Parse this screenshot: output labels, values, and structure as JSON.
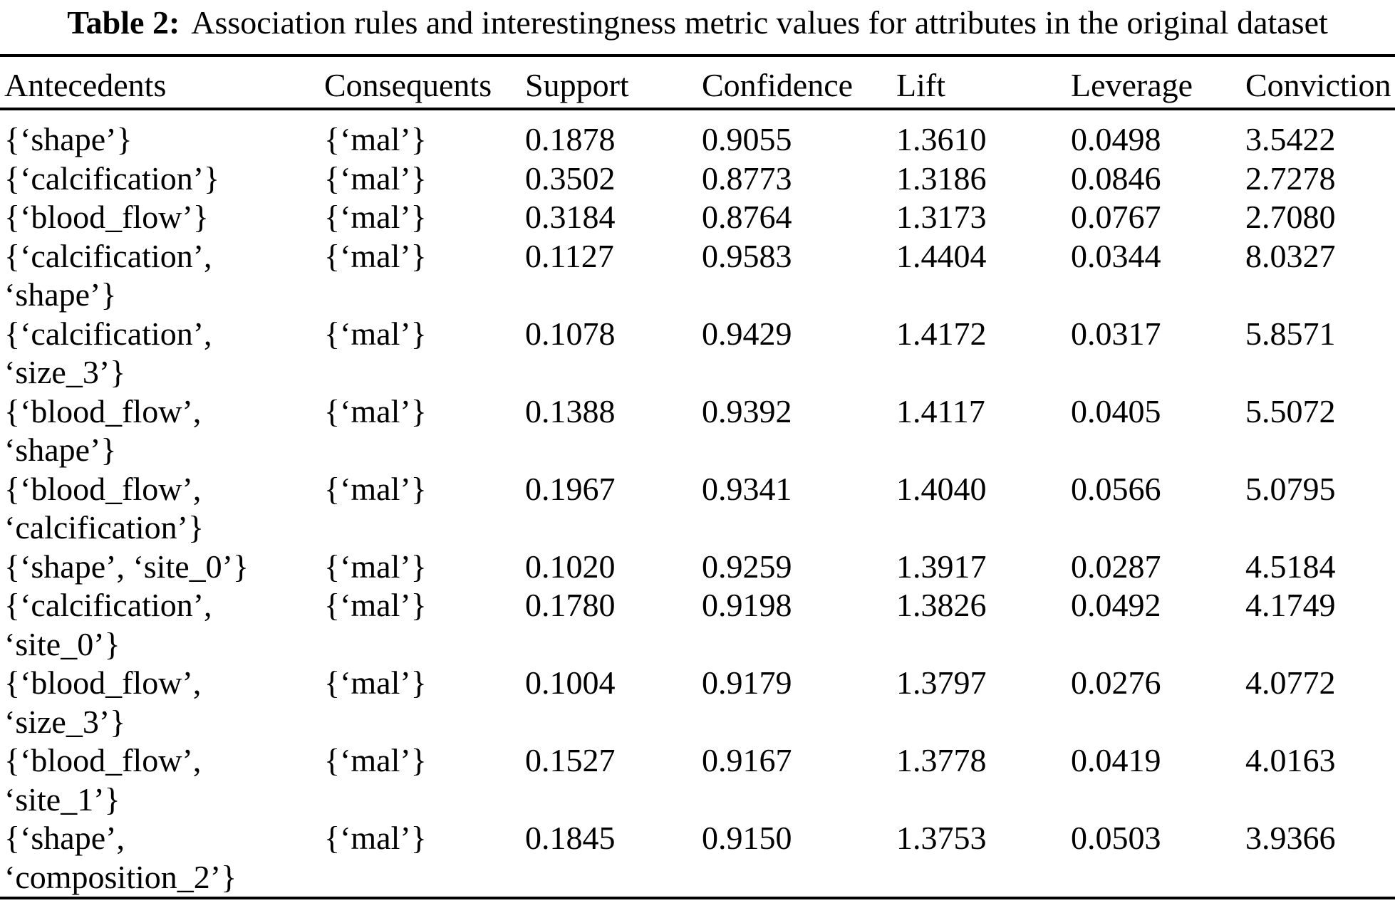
{
  "caption": {
    "label": "Table 2:",
    "text": "Association rules and interestingness metric values for attributes in the original dataset"
  },
  "table": {
    "columns": [
      "Antecedents",
      "Consequents",
      "Support",
      "Confidence",
      "Lift",
      "Leverage",
      "Conviction"
    ],
    "rows": [
      {
        "antecedent_lines": [
          "{‘shape’}"
        ],
        "consequent": "{‘mal’}",
        "support": "0.1878",
        "confidence": "0.9055",
        "lift": "1.3610",
        "leverage": "0.0498",
        "conviction": "3.5422"
      },
      {
        "antecedent_lines": [
          "{‘calcification’}"
        ],
        "consequent": "{‘mal’}",
        "support": "0.3502",
        "confidence": "0.8773",
        "lift": "1.3186",
        "leverage": "0.0846",
        "conviction": "2.7278"
      },
      {
        "antecedent_lines": [
          "{‘blood_flow’}"
        ],
        "consequent": "{‘mal’}",
        "support": "0.3184",
        "confidence": "0.8764",
        "lift": "1.3173",
        "leverage": "0.0767",
        "conviction": "2.7080"
      },
      {
        "antecedent_lines": [
          "{‘calcification’,",
          "‘shape’}"
        ],
        "consequent": "{‘mal’}",
        "support": "0.1127",
        "confidence": "0.9583",
        "lift": "1.4404",
        "leverage": "0.0344",
        "conviction": "8.0327"
      },
      {
        "antecedent_lines": [
          "{‘calcification’,",
          "‘size_3’}"
        ],
        "consequent": "{‘mal’}",
        "support": "0.1078",
        "confidence": "0.9429",
        "lift": "1.4172",
        "leverage": "0.0317",
        "conviction": "5.8571"
      },
      {
        "antecedent_lines": [
          "{‘blood_flow’,",
          "‘shape’}"
        ],
        "consequent": "{‘mal’}",
        "support": "0.1388",
        "confidence": "0.9392",
        "lift": "1.4117",
        "leverage": "0.0405",
        "conviction": "5.5072"
      },
      {
        "antecedent_lines": [
          "{‘blood_flow’,",
          "‘calcification’}"
        ],
        "consequent": "{‘mal’}",
        "support": "0.1967",
        "confidence": "0.9341",
        "lift": "1.4040",
        "leverage": "0.0566",
        "conviction": "5.0795"
      },
      {
        "antecedent_lines": [
          "{‘shape’, ‘site_0’}"
        ],
        "consequent": "{‘mal’}",
        "support": "0.1020",
        "confidence": "0.9259",
        "lift": "1.3917",
        "leverage": "0.0287",
        "conviction": "4.5184"
      },
      {
        "antecedent_lines": [
          "{‘calcification’,",
          "‘site_0’}"
        ],
        "consequent": "{‘mal’}",
        "support": "0.1780",
        "confidence": "0.9198",
        "lift": "1.3826",
        "leverage": "0.0492",
        "conviction": "4.1749"
      },
      {
        "antecedent_lines": [
          "{‘blood_flow’,",
          "‘size_3’}"
        ],
        "consequent": "{‘mal’}",
        "support": "0.1004",
        "confidence": "0.9179",
        "lift": "1.3797",
        "leverage": "0.0276",
        "conviction": "4.0772"
      },
      {
        "antecedent_lines": [
          "{‘blood_flow’,",
          "‘site_1’}"
        ],
        "consequent": "{‘mal’}",
        "support": "0.1527",
        "confidence": "0.9167",
        "lift": "1.3778",
        "leverage": "0.0419",
        "conviction": "4.0163"
      },
      {
        "antecedent_lines": [
          "{‘shape’,",
          "‘composition_2’}"
        ],
        "consequent": "{‘mal’}",
        "support": "0.1845",
        "confidence": "0.9150",
        "lift": "1.3753",
        "leverage": "0.0503",
        "conviction": "3.9366"
      }
    ]
  },
  "colors": {
    "text": "#000000",
    "background": "#ffffff",
    "rule": "#000000"
  }
}
